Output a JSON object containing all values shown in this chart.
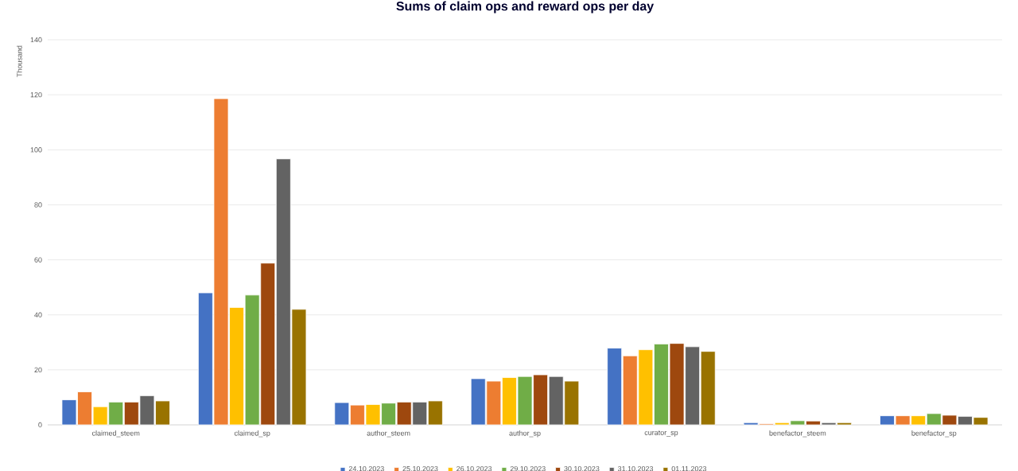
{
  "chart_data": {
    "type": "bar",
    "title": "Sums of claim ops and reward ops per day",
    "ylabel": "Thousand",
    "categories": [
      "claimed_steem",
      "claimed_sp",
      "author_steem",
      "author_sp",
      "curator_sp",
      "benefactor_steem",
      "benefactor_sp"
    ],
    "series": [
      {
        "name": "24.10.2023",
        "color": "#4472c4",
        "values": [
          9.1,
          48,
          8.1,
          16.8,
          27.9,
          0.8,
          3.3
        ]
      },
      {
        "name": "25.10.2023",
        "color": "#ed7d31",
        "values": [
          12,
          118.6,
          7.2,
          15.9,
          25.1,
          0.4,
          3.3
        ]
      },
      {
        "name": "26.10.2023",
        "color": "#ffc000",
        "values": [
          6.6,
          42.7,
          7.4,
          17.2,
          27.3,
          0.8,
          3.3
        ]
      },
      {
        "name": "29.10.2023",
        "color": "#70ad47",
        "values": [
          8.3,
          47.2,
          7.9,
          17.6,
          29.4,
          1.5,
          4.1
        ]
      },
      {
        "name": "30.10.2023",
        "color": "#9e480e",
        "values": [
          8.3,
          58.8,
          8.3,
          18.2,
          29.6,
          1.4,
          3.5
        ]
      },
      {
        "name": "31.10.2023",
        "color": "#636363",
        "values": [
          10.6,
          96.7,
          8.3,
          17.6,
          28.4,
          0.8,
          3.1
        ]
      },
      {
        "name": "01.11.2023",
        "color": "#997300",
        "values": [
          8.7,
          42,
          8.7,
          15.9,
          26.7,
          0.8,
          2.7
        ]
      }
    ],
    "ylim": [
      0,
      140
    ],
    "yticks": [
      0,
      20,
      40,
      60,
      80,
      100,
      120,
      140
    ],
    "grid": "y",
    "legend": "bottom"
  }
}
